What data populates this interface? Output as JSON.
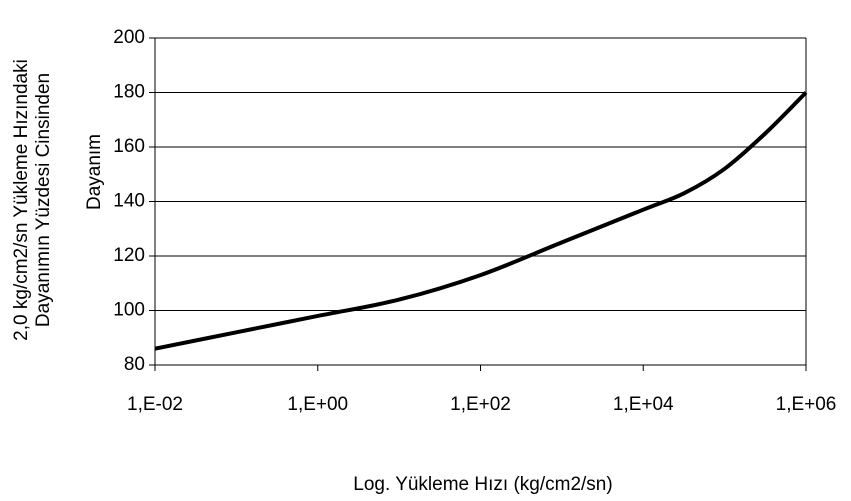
{
  "chart_data": {
    "type": "line",
    "xlabel": "Log. Yükleme Hızı (kg/cm2/sn)",
    "ylabel": [
      "2,0 kg/cm2/sn Yükleme Hızındaki",
      "Dayanımın Yüzdesi Cinsinden",
      "Dayanım"
    ],
    "x": [
      0.01,
      0.1,
      1,
      10,
      100,
      1000,
      10000,
      31623,
      100000,
      316228,
      1000000
    ],
    "series": [
      {
        "color": "#000000",
        "values": [
          86,
          92,
          98,
          104,
          113,
          125,
          137,
          143,
          152,
          165,
          180
        ]
      }
    ],
    "xscale": "log",
    "xlim": [
      0.01,
      1000000
    ],
    "xticks": [
      {
        "value": 0.01,
        "label": "1,E-02"
      },
      {
        "value": 1,
        "label": "1,E+00"
      },
      {
        "value": 100,
        "label": "1,E+02"
      },
      {
        "value": 10000,
        "label": "1,E+04"
      },
      {
        "value": 1000000,
        "label": "1,E+06"
      }
    ],
    "ylim": [
      80,
      200
    ],
    "yticks": [
      80,
      100,
      120,
      140,
      160,
      180,
      200
    ],
    "grid": true
  }
}
